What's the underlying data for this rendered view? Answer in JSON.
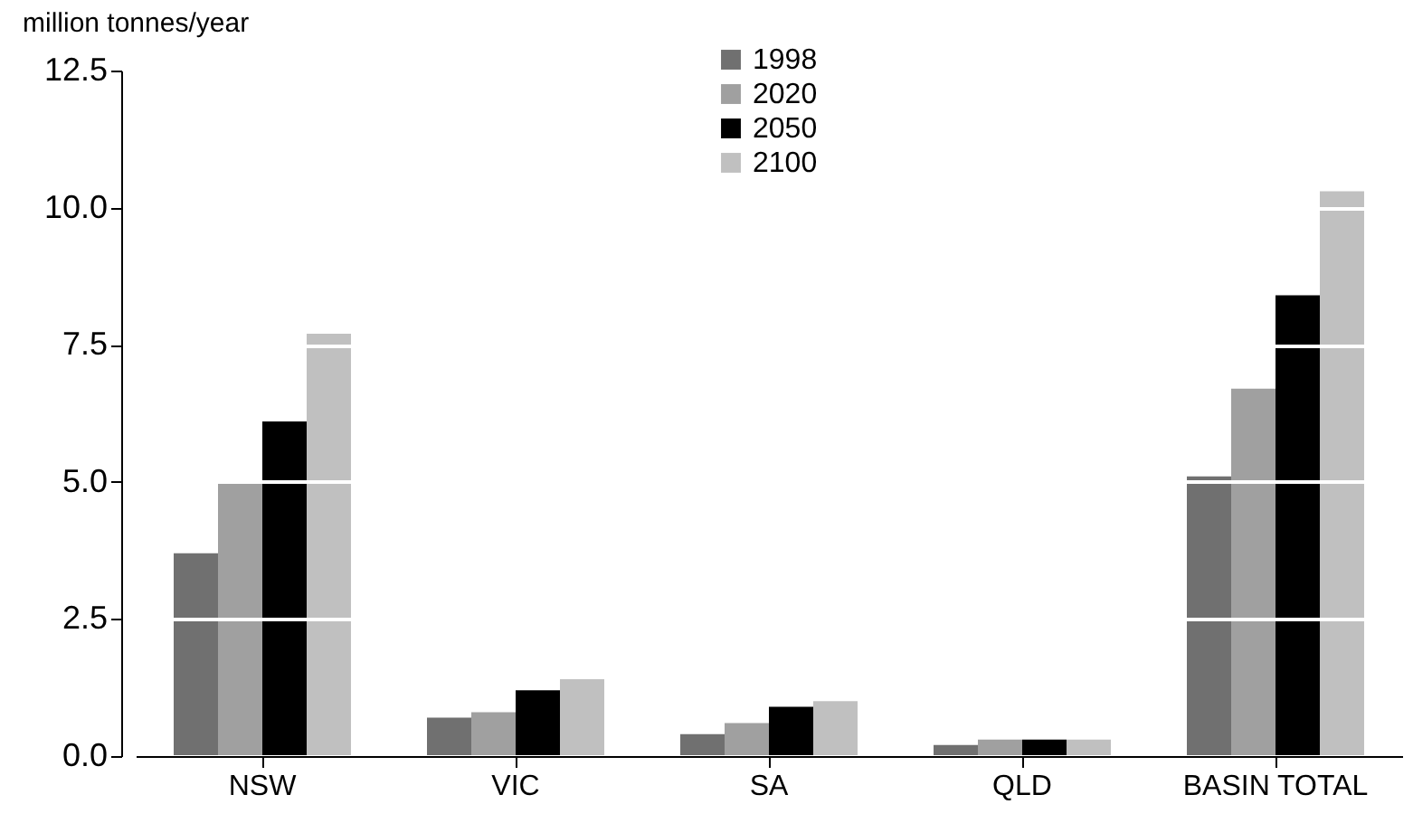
{
  "chart_data": {
    "type": "bar",
    "ylabel": "million tonnes/year",
    "categories": [
      "NSW",
      "VIC",
      "SA",
      "QLD",
      "BASIN TOTAL"
    ],
    "series": [
      {
        "name": "1998",
        "color": "#707070",
        "values": [
          3.7,
          0.7,
          0.4,
          0.2,
          5.1
        ]
      },
      {
        "name": "2020",
        "color": "#a0a0a0",
        "values": [
          5.0,
          0.8,
          0.6,
          0.3,
          6.7
        ]
      },
      {
        "name": "2050",
        "color": "#000000",
        "values": [
          6.1,
          1.2,
          0.9,
          0.3,
          8.4
        ]
      },
      {
        "name": "2100",
        "color": "#c0c0c0",
        "values": [
          7.7,
          1.4,
          1.0,
          0.3,
          10.3
        ]
      }
    ],
    "ylim": [
      0,
      12.5
    ],
    "yticks": [
      {
        "value": 0,
        "label": "0.0"
      },
      2.5,
      {
        "value": 5,
        "label": "5.0"
      },
      7.5,
      {
        "value": 10,
        "label": "10.0"
      },
      12.5
    ],
    "grid": "y",
    "legend": "top"
  }
}
